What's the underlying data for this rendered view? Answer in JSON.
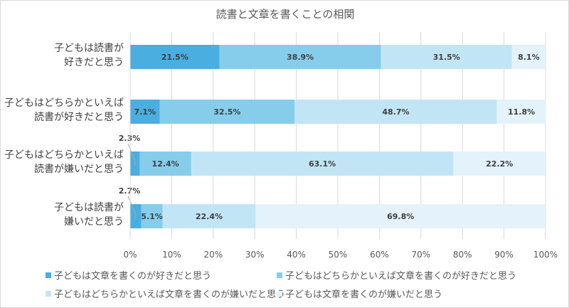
{
  "chart_data": {
    "type": "bar",
    "orientation": "horizontal",
    "stacked": "100%",
    "title": "読書と文章を書くことの相関",
    "categories": [
      [
        "子どもは読書が",
        "好きだと思う"
      ],
      [
        "子どもはどちらかといえば",
        "読書が好きだと思う"
      ],
      [
        "子どもはどちらかといえば",
        "読書が嫌いだと思う"
      ],
      [
        "子どもは読書が",
        "嫌いだと思う"
      ]
    ],
    "series": [
      {
        "name": "子どもは文章を書くのが好きだと思う",
        "color": "#4aaee0",
        "values": [
          21.5,
          7.1,
          2.3,
          2.7
        ]
      },
      {
        "name": "子どもはどちらかといえば文章を書くのが好きだと思う",
        "color": "#86cdec",
        "values": [
          38.9,
          32.5,
          12.4,
          5.1
        ]
      },
      {
        "name": "子どもはどちらかといえば文章を書くのが嫌いだと思う",
        "color": "#c2e5f6",
        "values": [
          31.5,
          48.7,
          63.1,
          22.4
        ]
      },
      {
        "name": "子どもは文章を書くのが嫌いだと思う",
        "color": "#e3f2fb",
        "values": [
          8.1,
          11.8,
          22.2,
          69.8
        ]
      }
    ],
    "data_labels": [
      [
        "21.5%",
        "38.9%",
        "31.5%",
        "8.1%"
      ],
      [
        "7.1%",
        "32.5%",
        "48.7%",
        "11.8%"
      ],
      [
        "2.3%",
        "12.4%",
        "63.1%",
        "22.2%"
      ],
      [
        "2.7%",
        "5.1%",
        "22.4%",
        "69.8%"
      ]
    ],
    "xticks": [
      "0%",
      "10%",
      "20%",
      "30%",
      "40%",
      "50%",
      "60%",
      "70%",
      "80%",
      "90%",
      "100%"
    ],
    "xlim": [
      0,
      100
    ],
    "grid": true,
    "legend_position": "bottom"
  }
}
